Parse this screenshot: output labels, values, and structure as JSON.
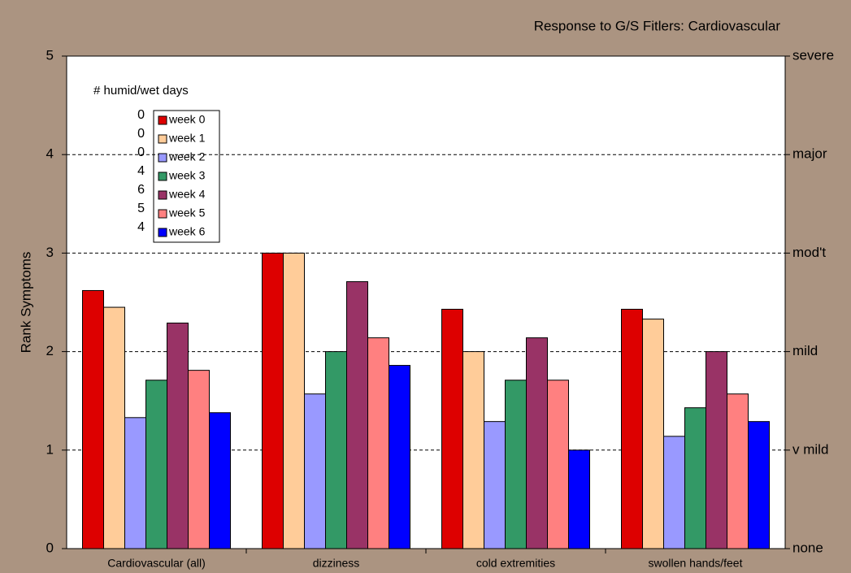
{
  "chart_data": {
    "type": "bar",
    "title": "Response to G/S Fitlers:  Cardiovascular",
    "y_label": "Rank Symptoms",
    "annotation": "# humid/wet days",
    "humid_days": [
      0,
      0,
      0,
      4,
      6,
      5,
      4
    ],
    "categories": [
      "Cardiovascular (all)",
      "dizziness",
      "cold extremities",
      "swollen hands/feet"
    ],
    "series": [
      {
        "name": "week 0",
        "color": "#dd0000",
        "values": [
          2.62,
          3.0,
          2.43,
          2.43
        ]
      },
      {
        "name": "week 1",
        "color": "#ffcc99",
        "values": [
          2.45,
          3.0,
          2.0,
          2.33
        ]
      },
      {
        "name": "week 2",
        "color": "#9999ff",
        "values": [
          1.33,
          1.57,
          1.29,
          1.14
        ]
      },
      {
        "name": "week 3",
        "color": "#339966",
        "values": [
          1.71,
          2.0,
          1.71,
          1.43
        ]
      },
      {
        "name": "week 4",
        "color": "#993366",
        "values": [
          2.29,
          2.71,
          2.14,
          2.0
        ]
      },
      {
        "name": "week 5",
        "color": "#ff8080",
        "values": [
          1.81,
          2.14,
          1.71,
          1.57
        ]
      },
      {
        "name": "week 6",
        "color": "#0000ff",
        "values": [
          1.38,
          1.86,
          1.0,
          1.29
        ]
      }
    ],
    "ylim": [
      0,
      5
    ],
    "yticks": [
      0,
      1,
      2,
      3,
      4,
      5
    ],
    "y2lim": [
      0,
      5
    ],
    "y2ticks": [
      {
        "value": 0,
        "label": "none"
      },
      {
        "value": 1,
        "label": "v mild"
      },
      {
        "value": 2,
        "label": "mild"
      },
      {
        "value": 3,
        "label": "mod't"
      },
      {
        "value": 4,
        "label": "major"
      },
      {
        "value": 5,
        "label": "severe"
      }
    ],
    "grid": true
  }
}
